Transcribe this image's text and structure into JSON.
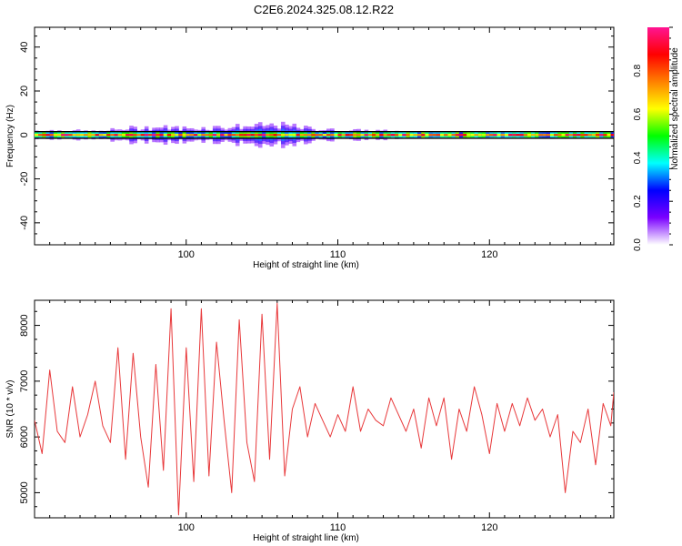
{
  "title": "C2E6.2024.325.08.12.R22",
  "colors": {
    "snr_line": "#e8383a",
    "band_edge": "#000000",
    "colormap": [
      "#ffffff",
      "#7a00ff",
      "#0000ff",
      "#00ffff",
      "#00ff00",
      "#ffff00",
      "#ff8000",
      "#ff0000",
      "#ff1493"
    ]
  },
  "chart_data": [
    {
      "type": "heatmap",
      "xlabel": "Height of straight line (km)",
      "ylabel": "Frequency (Hz)",
      "xlim": [
        90,
        128.2
      ],
      "ylim": [
        -50,
        49
      ],
      "xticks": [
        100,
        110,
        120
      ],
      "yticks": [
        -40,
        -20,
        0,
        20,
        40
      ],
      "xtick_labels": [
        "100",
        "110",
        "120"
      ],
      "ytick_labels": [
        "-40",
        "-20",
        "0",
        "20",
        "40"
      ],
      "band_hz": [
        -1.5,
        1.5
      ],
      "colorbar": {
        "label": "Normalized spectral amplitude",
        "range": [
          0,
          1
        ],
        "ticks": [
          0.0,
          0.2,
          0.4,
          0.6,
          0.8
        ],
        "tick_labels": [
          "0.0",
          "0.2",
          "0.4",
          "0.6",
          "0.8"
        ]
      },
      "spread_profile_km": [
        90,
        92,
        94,
        96,
        98,
        100,
        102,
        104,
        106,
        108,
        110,
        112,
        114,
        116,
        118,
        120,
        122,
        124,
        126,
        128.2
      ],
      "spread_profile_hz": [
        2,
        2,
        1.5,
        3,
        3.5,
        3,
        3.5,
        4,
        4.5,
        3,
        2,
        2,
        1.5,
        1,
        1,
        1,
        1,
        1.5,
        1,
        1
      ]
    },
    {
      "type": "line",
      "xlabel": "Height of straight line (km)",
      "ylabel": "SNR (10 * v/v)",
      "xlim": [
        90,
        128.2
      ],
      "ylim": [
        4550,
        8450
      ],
      "xticks": [
        100,
        110,
        120
      ],
      "yticks": [
        5000,
        6000,
        7000,
        8000
      ],
      "xtick_labels": [
        "100",
        "110",
        "120"
      ],
      "ytick_labels": [
        "5000",
        "6000",
        "7000",
        "8000"
      ],
      "series": [
        {
          "x": [
            90,
            90.5,
            91,
            91.5,
            92,
            92.5,
            93,
            93.5,
            94,
            94.5,
            95,
            95.5,
            96,
            96.5,
            97,
            97.5,
            98,
            98.5,
            99,
            99.5,
            100,
            100.5,
            101,
            101.5,
            102,
            102.5,
            103,
            103.5,
            104,
            104.5,
            105,
            105.5,
            106,
            106.5,
            107,
            107.5,
            108,
            108.5,
            109,
            109.5,
            110,
            110.5,
            111,
            111.5,
            112,
            112.5,
            113,
            113.5,
            114,
            114.5,
            115,
            115.5,
            116,
            116.5,
            117,
            117.5,
            118,
            118.5,
            119,
            119.5,
            120,
            120.5,
            121,
            121.5,
            122,
            122.5,
            123,
            123.5,
            124,
            124.5,
            125,
            125.5,
            126,
            126.5,
            127,
            127.5,
            128,
            128.2
          ],
          "y": [
            6300,
            5700,
            7200,
            6100,
            5900,
            6900,
            6000,
            6400,
            7000,
            6200,
            5900,
            7600,
            5600,
            7500,
            6000,
            5100,
            7300,
            5400,
            8300,
            4600,
            7600,
            5200,
            8300,
            5300,
            7700,
            6300,
            5000,
            8100,
            5900,
            5200,
            8200,
            5600,
            8400,
            5300,
            6500,
            6900,
            6000,
            6600,
            6300,
            6000,
            6400,
            6100,
            6900,
            6100,
            6500,
            6300,
            6200,
            6700,
            6400,
            6100,
            6500,
            5800,
            6700,
            6200,
            6700,
            5600,
            6500,
            6100,
            6900,
            6400,
            5700,
            6600,
            6100,
            6600,
            6200,
            6700,
            6300,
            6500,
            6000,
            6400,
            5000,
            6100,
            5900,
            6500,
            5500,
            6600,
            6200,
            6800
          ]
        }
      ]
    }
  ]
}
